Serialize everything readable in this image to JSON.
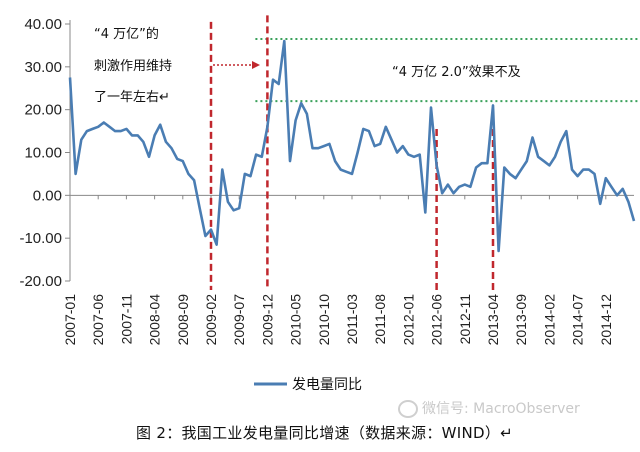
{
  "chart_data": {
    "type": "line",
    "ylim": [
      -20,
      40
    ],
    "y_ticks": [
      "40.00",
      "30.00",
      "20.00",
      "10.00",
      "0.00",
      "-10.00",
      "-20.00"
    ],
    "x_tick_labels": [
      "2007-01",
      "2007-06",
      "2007-11",
      "2008-04",
      "2008-09",
      "2009-02",
      "2009-07",
      "2009-12",
      "2010-05",
      "2010-10",
      "2011-03",
      "2011-08",
      "2012-01",
      "2012-06",
      "2012-11",
      "2013-04",
      "2013-09",
      "2014-02",
      "2014-07",
      "2014-12"
    ],
    "start_month": "2007-01",
    "series": [
      {
        "name": "发电量同比",
        "color": "#4a7db3",
        "values": [
          27.5,
          5,
          13,
          15,
          15.5,
          16,
          17,
          16,
          15,
          15,
          15.5,
          14,
          14,
          12.5,
          9,
          14,
          16.5,
          12.5,
          11,
          8.5,
          8,
          5,
          3.5,
          -3,
          -9.5,
          -8,
          -11.5,
          6,
          -1.5,
          -3.5,
          -3,
          5,
          4.5,
          9.5,
          9,
          16,
          27,
          26,
          36,
          8,
          17.5,
          21.5,
          19,
          11,
          11,
          11.5,
          12,
          8,
          6,
          5.5,
          5,
          10,
          15.5,
          15,
          11.5,
          12,
          16,
          13,
          10,
          11.5,
          9.5,
          9,
          9.5,
          -4,
          20.5,
          7,
          0.5,
          2.5,
          0.5,
          2,
          2.5,
          2,
          6.5,
          7.5,
          7.5,
          21,
          -13,
          6.5,
          5,
          4,
          6,
          8,
          13.5,
          9,
          8,
          7,
          9,
          12.5,
          15,
          6,
          4.5,
          6,
          6,
          5,
          -2,
          4,
          2,
          0,
          1.5,
          -1.5,
          -6
        ]
      }
    ],
    "annotations": [
      "“4 万亿”的",
      "刺激作用维持",
      "了一年左右↵",
      "“4 万亿 2.0”效果不及"
    ],
    "vertical_markers": [
      "2009-02",
      "2009-12",
      "2012-06",
      "2013-04"
    ],
    "horizontal_reference_lines": [
      36.5,
      22
    ],
    "legend": {
      "placement": "bottom",
      "label": "发电量同比"
    },
    "grid": false
  },
  "caption": "图 2：我国工业发电量同比增速（数据来源：WIND）↵",
  "watermark": "微信号: MacroObserver",
  "colors": {
    "marker_red": "#c0272d",
    "reference_green": "#3aa05a",
    "line_blue": "#4a7db3"
  }
}
